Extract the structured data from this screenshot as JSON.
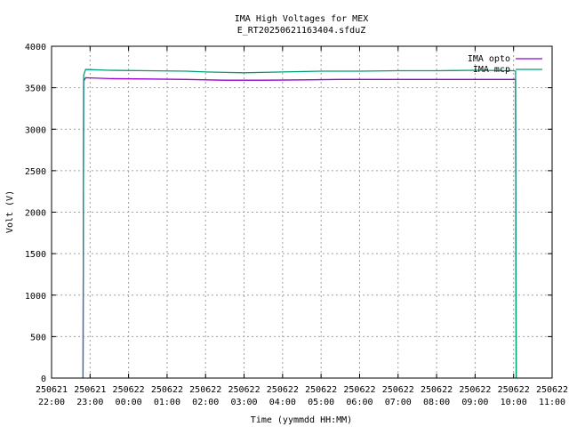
{
  "chart_data": {
    "type": "line",
    "title": "IMA High Voltages for MEX",
    "subtitle": "E_RT20250621163404.sfduZ",
    "xlabel": "Time (yymmdd HH:MM)",
    "ylabel": "Volt (V)",
    "xlim": [
      "250621 22:00",
      "250622 11:00"
    ],
    "ylim": [
      0,
      4000
    ],
    "grid": true,
    "legend_position": "top-right",
    "x_ticks": [
      {
        "date": "250621",
        "time": "22:00"
      },
      {
        "date": "250621",
        "time": "23:00"
      },
      {
        "date": "250622",
        "time": "00:00"
      },
      {
        "date": "250622",
        "time": "01:00"
      },
      {
        "date": "250622",
        "time": "02:00"
      },
      {
        "date": "250622",
        "time": "03:00"
      },
      {
        "date": "250622",
        "time": "04:00"
      },
      {
        "date": "250622",
        "time": "05:00"
      },
      {
        "date": "250622",
        "time": "06:00"
      },
      {
        "date": "250622",
        "time": "07:00"
      },
      {
        "date": "250622",
        "time": "08:00"
      },
      {
        "date": "250622",
        "time": "09:00"
      },
      {
        "date": "250622",
        "time": "10:00"
      },
      {
        "date": "250622",
        "time": "11:00"
      }
    ],
    "y_ticks": [
      "0",
      "500",
      "1000",
      "1500",
      "2000",
      "2500",
      "3000",
      "3500",
      "4000"
    ],
    "series": [
      {
        "name": "IMA opto",
        "color": "#9400d3",
        "points": [
          [
            "250621 22:49",
            0
          ],
          [
            "250621 22:50",
            3580
          ],
          [
            "250621 22:53",
            3620
          ],
          [
            "250621 23:30",
            3610
          ],
          [
            "250622 00:30",
            3605
          ],
          [
            "250622 01:30",
            3600
          ],
          [
            "250622 02:30",
            3590
          ],
          [
            "250622 03:30",
            3590
          ],
          [
            "250622 04:30",
            3595
          ],
          [
            "250622 05:30",
            3600
          ],
          [
            "250622 06:30",
            3600
          ],
          [
            "250622 07:30",
            3600
          ],
          [
            "250622 08:30",
            3600
          ],
          [
            "250622 09:30",
            3600
          ],
          [
            "250622 10:00",
            3600
          ],
          [
            "250622 10:03",
            3600
          ],
          [
            "250622 10:04",
            0
          ]
        ]
      },
      {
        "name": "IMA mcp",
        "color": "#009e73",
        "points": [
          [
            "250621 22:49",
            0
          ],
          [
            "250621 22:50",
            3650
          ],
          [
            "250621 22:53",
            3720
          ],
          [
            "250621 23:30",
            3710
          ],
          [
            "250622 00:30",
            3705
          ],
          [
            "250622 01:30",
            3700
          ],
          [
            "250622 02:00",
            3690
          ],
          [
            "250622 03:00",
            3680
          ],
          [
            "250622 04:00",
            3690
          ],
          [
            "250622 05:00",
            3700
          ],
          [
            "250622 06:00",
            3700
          ],
          [
            "250622 07:00",
            3705
          ],
          [
            "250622 08:00",
            3705
          ],
          [
            "250622 09:00",
            3710
          ],
          [
            "250622 10:00",
            3705
          ],
          [
            "250622 10:03",
            3700
          ],
          [
            "250622 10:04",
            0
          ]
        ]
      }
    ]
  }
}
